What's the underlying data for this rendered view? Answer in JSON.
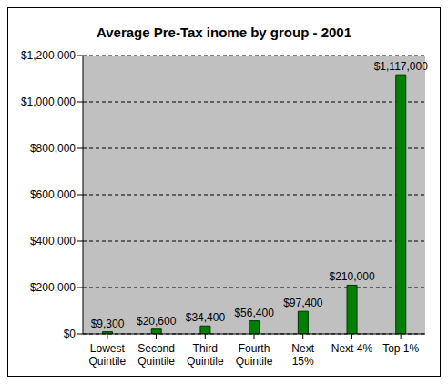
{
  "chart_data": {
    "type": "bar",
    "title": "Average Pre-Tax inome by group - 2001",
    "categories": [
      "Lowest Quintile",
      "Second Quintile",
      "Third Quintile",
      "Fourth Quintile",
      "Next 15%",
      "Next 4%",
      "Top 1%"
    ],
    "values": [
      9300,
      20600,
      34400,
      56400,
      97400,
      210000,
      1117000
    ],
    "value_labels": [
      "$9,300",
      "$20,600",
      "$34,400",
      "$56,400",
      "$97,400",
      "$210,000",
      "$1,117,000"
    ],
    "color": "#008000",
    "ylim": [
      0,
      1200000
    ],
    "yticks": [
      {
        "value": 0,
        "label": "$0"
      },
      {
        "value": 200000,
        "label": "$200,000"
      },
      {
        "value": 400000,
        "label": "$400,000"
      },
      {
        "value": 600000,
        "label": "$600,000"
      },
      {
        "value": 800000,
        "label": "$800,000"
      },
      {
        "value": 1000000,
        "label": "$1,000,000"
      },
      {
        "value": 1200000,
        "label": "$1,200,000"
      }
    ],
    "grid": true,
    "data_labels": true
  }
}
